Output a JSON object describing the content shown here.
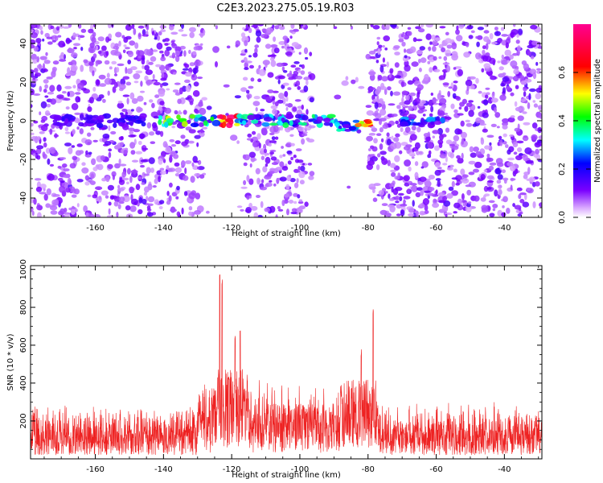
{
  "title": "C2E3.2023.275.05.19.R03",
  "chart_data": [
    {
      "type": "heatmap",
      "xlabel": "Height of straight line (km)",
      "ylabel": "Frequency (Hz)",
      "xlim": [
        -179,
        -29
      ],
      "ylim": [
        -50,
        50
      ],
      "x_ticks": [
        -160,
        -140,
        -120,
        -100,
        -80,
        -60,
        -40
      ],
      "y_ticks": [
        -40,
        -20,
        0,
        20,
        40
      ],
      "grid": false,
      "colorbar": {
        "label": "Normalized spectral amplitude",
        "range": [
          0,
          0.8
        ],
        "ticks": [
          "0.0",
          "0.2",
          "0.4",
          "0.6"
        ],
        "colors": [
          "#ffffff",
          "#c080ff",
          "#7a00ff",
          "#0000ff",
          "#00ffff",
          "#00ff00",
          "#ffff00",
          "#ff0000",
          "#ff0080"
        ]
      },
      "gaps_x": [
        [
          -128,
          -117
        ],
        [
          -96,
          -80
        ]
      ],
      "signal_band": {
        "frequency": 0,
        "segments": [
          {
            "x_start": -172,
            "x_end": -145,
            "peak": 0.15
          },
          {
            "x_start": -143,
            "x_end": -117,
            "peak": 0.8
          },
          {
            "x_start": -117,
            "x_end": -79,
            "peak": 0.6
          },
          {
            "x_start": -70,
            "x_end": -58,
            "peak": 0.25
          }
        ]
      }
    },
    {
      "type": "line",
      "xlabel": "Height of straight line (km)",
      "ylabel": "SNR (10 * v/v)",
      "xlim": [
        -179,
        -29
      ],
      "ylim": [
        0,
        1020
      ],
      "x_ticks": [
        -160,
        -140,
        -120,
        -100,
        -80,
        -60,
        -40
      ],
      "y_ticks": [
        200,
        400,
        600,
        800,
        1000
      ],
      "grid": false,
      "color": "#ee2222",
      "baseline_range": [
        20,
        300
      ],
      "peaks": [
        {
          "x": -123.5,
          "y": 1000
        },
        {
          "x": -122.8,
          "y": 960
        },
        {
          "x": -119,
          "y": 650
        },
        {
          "x": -117.5,
          "y": 700
        },
        {
          "x": -82,
          "y": 580
        },
        {
          "x": -78.5,
          "y": 800
        }
      ]
    }
  ]
}
